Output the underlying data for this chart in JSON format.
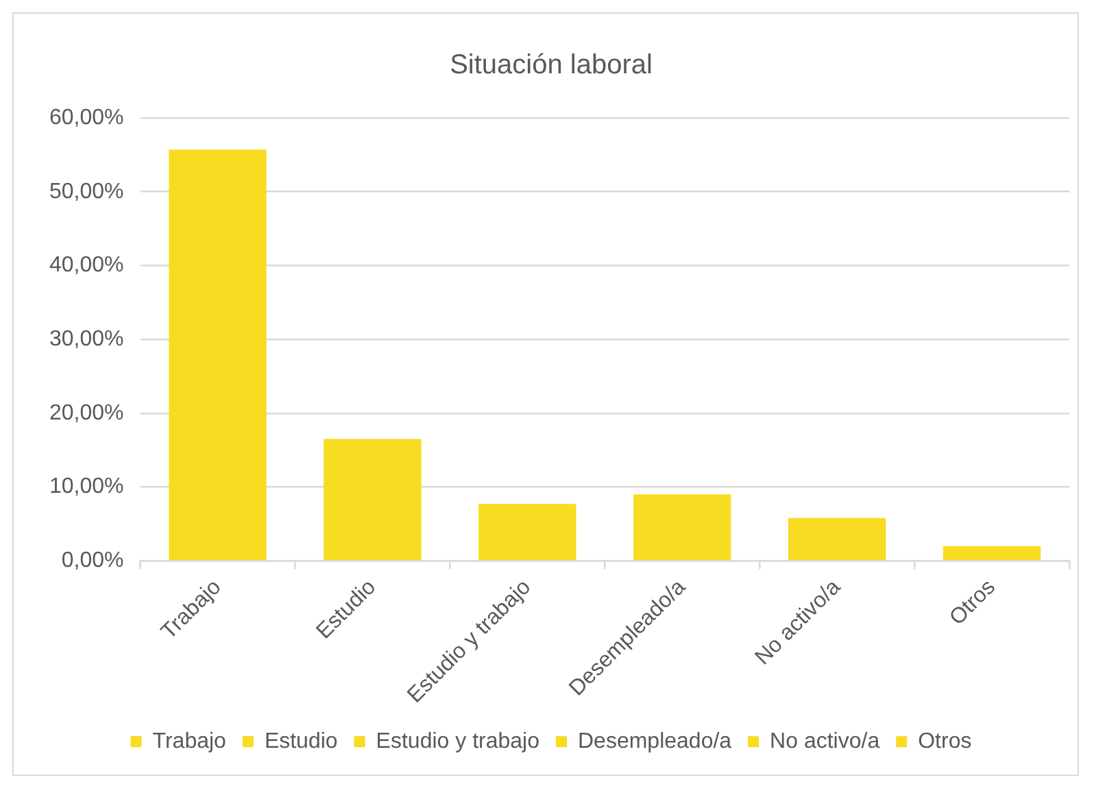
{
  "chart_data": {
    "type": "bar",
    "title": "Situación laboral",
    "categories": [
      "Trabajo",
      "Estudio",
      "Estudio y trabajo",
      "Desempleado/a",
      "No activo/a",
      "Otros"
    ],
    "series": [
      {
        "name": "Trabajo",
        "color": "#f7dc22",
        "values": [
          55.7,
          null,
          null,
          null,
          null,
          null
        ]
      },
      {
        "name": "Estudio",
        "color": "#f7dc22",
        "values": [
          null,
          16.5,
          null,
          null,
          null,
          null
        ]
      },
      {
        "name": "Estudio y trabajo",
        "color": "#f7dc22",
        "values": [
          null,
          null,
          7.7,
          null,
          null,
          null
        ]
      },
      {
        "name": "Desempleado/a",
        "color": "#f7dc22",
        "values": [
          null,
          null,
          null,
          9.0,
          null,
          null
        ]
      },
      {
        "name": "No activo/a",
        "color": "#f7dc22",
        "values": [
          null,
          null,
          null,
          null,
          5.8,
          null
        ]
      },
      {
        "name": "Otros",
        "color": "#f7dc22",
        "values": [
          null,
          null,
          null,
          null,
          null,
          2.0
        ]
      }
    ],
    "ylim": [
      0,
      60
    ],
    "yticks": [
      {
        "value": 0,
        "label": "0,00%"
      },
      {
        "value": 10,
        "label": "10,00%"
      },
      {
        "value": 20,
        "label": "20,00%"
      },
      {
        "value": 30,
        "label": "30,00%"
      },
      {
        "value": 40,
        "label": "40,00%"
      },
      {
        "value": 50,
        "label": "50,00%"
      },
      {
        "value": 60,
        "label": "60,00%"
      }
    ],
    "grid": "y",
    "legend": "bottom"
  }
}
